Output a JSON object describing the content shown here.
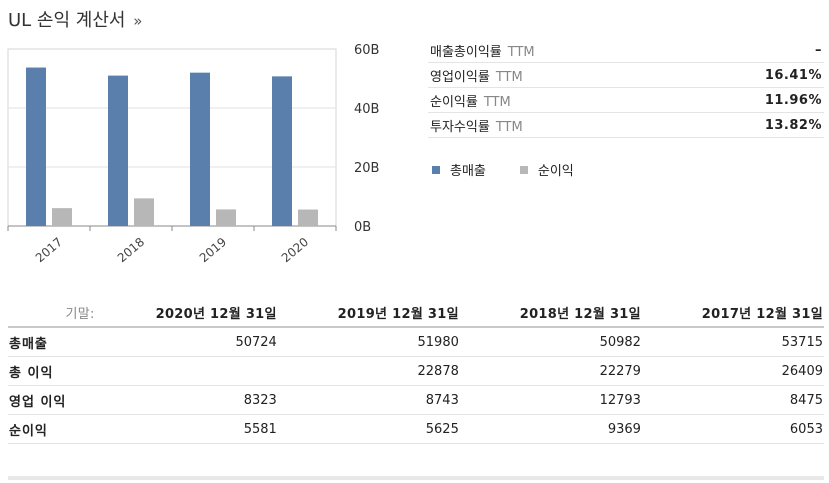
{
  "title": "UL 손익 계산서",
  "title_arrow": "»",
  "colors": {
    "revenue": "#5b7fad",
    "net_income": "#b7b7b7"
  },
  "metrics": [
    {
      "name": "매출총이익률",
      "ttm": "TTM",
      "value": "–"
    },
    {
      "name": "영업이익률",
      "ttm": "TTM",
      "value": "16.41%"
    },
    {
      "name": "순이익률",
      "ttm": "TTM",
      "value": "11.96%"
    },
    {
      "name": "투자수익률",
      "ttm": "TTM",
      "value": "13.82%"
    }
  ],
  "legend": [
    {
      "name": "총매출",
      "color": "#5b7fad"
    },
    {
      "name": "순이익",
      "color": "#b7b7b7"
    }
  ],
  "chart_data": {
    "type": "bar",
    "categories": [
      "2017",
      "2018",
      "2019",
      "2020"
    ],
    "series": [
      {
        "name": "총매출",
        "values": [
          53715,
          50982,
          51980,
          50724
        ]
      },
      {
        "name": "순이익",
        "values": [
          6053,
          9369,
          5625,
          5581
        ]
      }
    ],
    "y_tick_labels": [
      "0B",
      "20B",
      "40B",
      "60B"
    ],
    "y_tick_values": [
      0,
      20000,
      40000,
      60000
    ],
    "ylim": [
      0,
      60000
    ],
    "y_axis_side": "right",
    "grid": true
  },
  "table": {
    "period_label": "기말:",
    "columns": [
      "2020년 12월 31일",
      "2019년 12월 31일",
      "2018년 12월 31일",
      "2017년 12월 31일"
    ],
    "rows": [
      {
        "name": "총매출",
        "values": [
          "50724",
          "51980",
          "50982",
          "53715"
        ]
      },
      {
        "name": "총 이익",
        "values": [
          "",
          "22878",
          "22279",
          "26409"
        ]
      },
      {
        "name": "영업 이익",
        "values": [
          "8323",
          "8743",
          "12793",
          "8475"
        ]
      },
      {
        "name": "순이익",
        "values": [
          "5581",
          "5625",
          "9369",
          "6053"
        ]
      }
    ]
  }
}
